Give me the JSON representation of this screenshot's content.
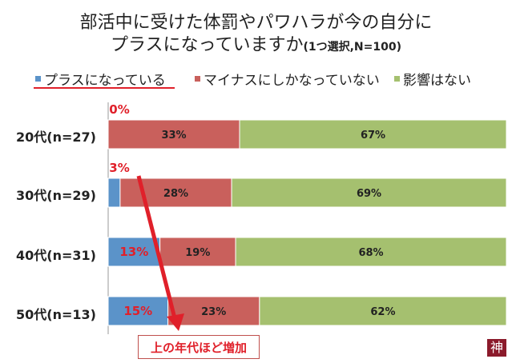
{
  "title_line1": "部活中に受けた体罰やパワハラが今の自分に",
  "title_line2": "プラスになっていますか",
  "title_note": "(1つ選択,N=100)",
  "annotation": "上の年代ほど増加",
  "logo_text": "神",
  "chart_data": {
    "type": "bar",
    "orientation": "horizontal",
    "stacked": "100%",
    "categories": [
      "20代(n=27)",
      "30代(n=29)",
      "40代(n=31)",
      "50代(n=13)"
    ],
    "series": [
      {
        "name": "プラスになっている",
        "color": "#5b93c9",
        "values": [
          0,
          3,
          13,
          15
        ],
        "labels": [
          "0%",
          "3%",
          "13%",
          "15%"
        ]
      },
      {
        "name": "マイナスにしかなっていない",
        "color": "#c9605c",
        "values": [
          33,
          28,
          19,
          23
        ],
        "labels": [
          "33%",
          "28%",
          "19%",
          "23%"
        ]
      },
      {
        "name": "影響はない",
        "color": "#a5c06f",
        "values": [
          67,
          69,
          68,
          62
        ],
        "labels": [
          "67%",
          "69%",
          "68%",
          "62%"
        ]
      }
    ],
    "legend": "top",
    "highlight_color": "#e0202a"
  }
}
